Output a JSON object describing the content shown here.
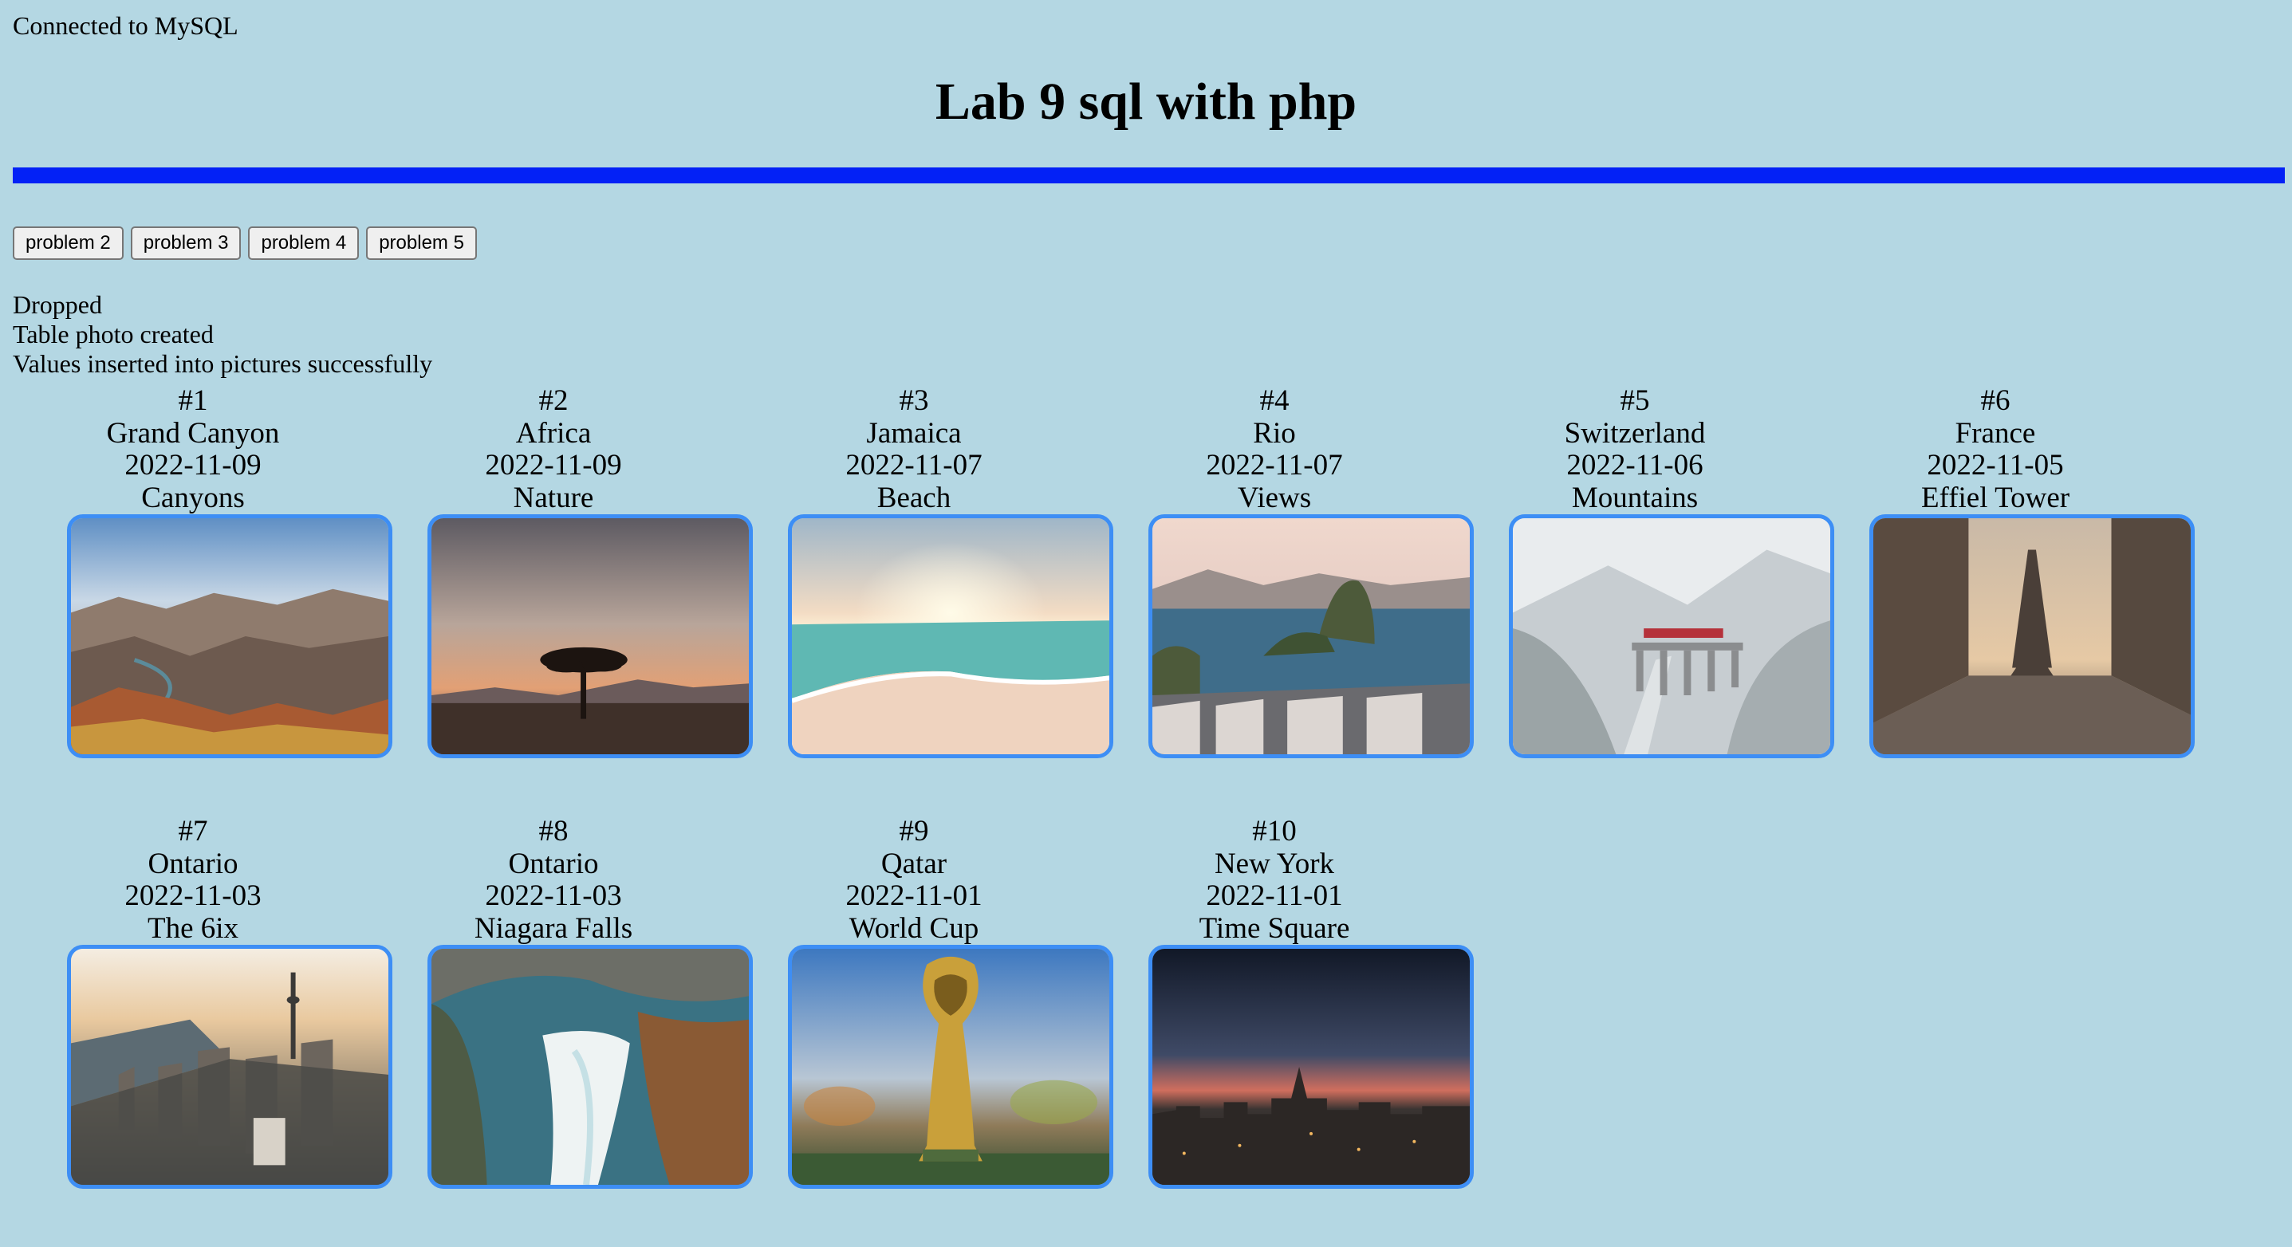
{
  "status": {
    "connected": "Connected to MySQL",
    "dropped": "Dropped",
    "table_created": "Table photo created",
    "values_inserted": "Values inserted into pictures successfully"
  },
  "page_title": "Lab 9 sql with php",
  "buttons": [
    "problem 2",
    "problem 3",
    "problem 4",
    "problem 5"
  ],
  "colors": {
    "background": "#b4d7e3",
    "rule": "#0321f6",
    "photo_border": "#3d8ef5"
  },
  "photos": [
    {
      "number": "#1",
      "title": "Grand Canyon",
      "date": "2022-11-09",
      "tag": "Canyons",
      "image": "grand-canyon-photo"
    },
    {
      "number": "#2",
      "title": "Africa",
      "date": "2022-11-09",
      "tag": "Nature",
      "image": "savanna-tree-sunset-photo"
    },
    {
      "number": "#3",
      "title": "Jamaica",
      "date": "2022-11-07",
      "tag": "Beach",
      "image": "beach-sunrise-photo"
    },
    {
      "number": "#4",
      "title": "Rio",
      "date": "2022-11-07",
      "tag": "Views",
      "image": "sugarloaf-mountain-photo"
    },
    {
      "number": "#5",
      "title": "Switzerland",
      "date": "2022-11-06",
      "tag": "Mountains",
      "image": "snowy-viaduct-train-photo"
    },
    {
      "number": "#6",
      "title": "France",
      "date": "2022-11-05",
      "tag": "Effiel Tower",
      "image": "eiffel-tower-street-photo"
    },
    {
      "number": "#7",
      "title": "Ontario",
      "date": "2022-11-03",
      "tag": "The 6ix",
      "image": "toronto-skyline-photo"
    },
    {
      "number": "#8",
      "title": "Ontario",
      "date": "2022-11-03",
      "tag": "Niagara Falls",
      "image": "niagara-falls-aerial-photo"
    },
    {
      "number": "#9",
      "title": "Qatar",
      "date": "2022-11-01",
      "tag": "World Cup",
      "image": "world-cup-trophy-photo"
    },
    {
      "number": "#10",
      "title": "New York",
      "date": "2022-11-01",
      "tag": "Time Square",
      "image": "new-york-dusk-skyline-photo"
    }
  ]
}
